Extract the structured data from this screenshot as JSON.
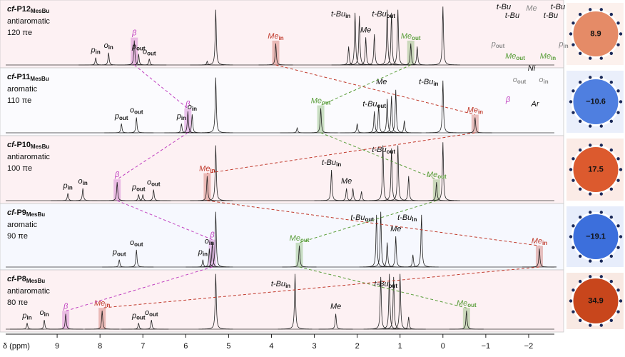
{
  "chart_data": {
    "type": "nmr",
    "xlabel": "δ (ppm)",
    "xlim": [
      10.2,
      -2.6
    ],
    "xticks": [
      9,
      8,
      7,
      6,
      5,
      4,
      3,
      2,
      1,
      0,
      {
        "value": -1,
        "label": "−1"
      },
      {
        "value": -2,
        "label": "−2"
      }
    ],
    "series": [
      {
        "name": {
          "prefix": "cf-",
          "main": "P12",
          "sub": "MesBu"
        },
        "desc": "antiaromatic",
        "electrons": "120 πe",
        "background": "#fdf1f3",
        "nics": {
          "value": 8.9,
          "label": "8.9"
        },
        "nics_color": "#e58b67",
        "peaks": [
          {
            "ppm": 8.1,
            "height": 0.12,
            "label": {
              "main": "p",
              "sub": "in"
            }
          },
          {
            "ppm": 7.8,
            "height": 0.2,
            "label": {
              "main": "o",
              "sub": "in"
            }
          },
          {
            "ppm": 7.2,
            "height": 0.4,
            "label": {
              "main": "β",
              "color": "#c040c0"
            }
          },
          {
            "ppm": 7.1,
            "height": 0.18,
            "label": {
              "main": "p",
              "sub": "out"
            }
          },
          {
            "ppm": 6.85,
            "height": 0.1,
            "label": {
              "main": "o",
              "sub": "out"
            }
          },
          {
            "ppm": 5.5,
            "height": 0.06
          },
          {
            "ppm": 5.3,
            "height": 0.9
          },
          {
            "ppm": 3.9,
            "height": 0.35,
            "label": {
              "main": "Me",
              "sub": "in",
              "color": "#c0392b"
            }
          },
          {
            "ppm": 2.2,
            "height": 0.3
          },
          {
            "ppm": 2.05,
            "height": 0.85,
            "label": {
              "main": "t-Bu",
              "sub": "in"
            }
          },
          {
            "ppm": 1.95,
            "height": 0.8
          },
          {
            "ppm": 1.8,
            "height": 0.45,
            "label": {
              "main": "Me"
            }
          },
          {
            "ppm": 1.6,
            "height": 0.5
          },
          {
            "ppm": 1.3,
            "height": 0.9
          },
          {
            "ppm": 1.2,
            "height": 0.85
          },
          {
            "ppm": 1.05,
            "height": 0.9,
            "label": {
              "main": "t-Bu",
              "sub": "out"
            }
          },
          {
            "ppm": 0.75,
            "height": 0.35,
            "label": {
              "main": "Me",
              "sub": "out",
              "color": "#5a9e3a"
            }
          },
          {
            "ppm": 0.6,
            "height": 0.3
          },
          {
            "ppm": 0,
            "height": 0.95
          }
        ]
      },
      {
        "name": {
          "prefix": "cf-",
          "main": "P11",
          "sub": "MesBu"
        },
        "desc": "aromatic",
        "electrons": "110 πe",
        "background": "#fbfbfe",
        "nics": {
          "value": -10.6,
          "label": "−10.6"
        },
        "nics_color": "#4f7fe0",
        "peaks": [
          {
            "ppm": 7.5,
            "height": 0.15,
            "label": {
              "main": "p",
              "sub": "out"
            }
          },
          {
            "ppm": 7.15,
            "height": 0.25,
            "label": {
              "main": "o",
              "sub": "out"
            }
          },
          {
            "ppm": 6.1,
            "height": 0.15,
            "label": {
              "main": "p",
              "sub": "in"
            }
          },
          {
            "ppm": 5.95,
            "height": 0.35,
            "label": {
              "main": "β",
              "color": "#c040c0"
            }
          },
          {
            "ppm": 5.85,
            "height": 0.3,
            "label": {
              "main": "o",
              "sub": "in"
            }
          },
          {
            "ppm": 5.3,
            "height": 0.9
          },
          {
            "ppm": 3.4,
            "height": 0.08
          },
          {
            "ppm": 2.85,
            "height": 0.4,
            "label": {
              "main": "Me",
              "sub": "out",
              "color": "#5a9e3a"
            }
          },
          {
            "ppm": 2.0,
            "height": 0.15
          },
          {
            "ppm": 1.6,
            "height": 0.35,
            "label": {
              "main": "t-Bu",
              "sub": "out"
            }
          },
          {
            "ppm": 1.5,
            "height": 0.45
          },
          {
            "ppm": 1.3,
            "height": 0.55
          },
          {
            "ppm": 1.2,
            "height": 0.6
          },
          {
            "ppm": 1.1,
            "height": 0.7,
            "label": {
              "main": "Me"
            }
          },
          {
            "ppm": 0.9,
            "height": 0.2
          },
          {
            "ppm": 0,
            "height": 0.85,
            "label": {
              "main": "t-Bu",
              "sub": "in"
            }
          },
          {
            "ppm": -0.75,
            "height": 0.25,
            "label": {
              "main": "Me",
              "sub": "in",
              "color": "#c0392b"
            }
          }
        ]
      },
      {
        "name": {
          "prefix": "cf-",
          "main": "P10",
          "sub": "MesBu"
        },
        "desc": "antiaromatic",
        "electrons": "100 πe",
        "background": "#fdf1f3",
        "nics": {
          "value": 17.5,
          "label": "17.5"
        },
        "nics_color": "#dc5a2e",
        "peaks": [
          {
            "ppm": 8.75,
            "height": 0.12,
            "label": {
              "main": "p",
              "sub": "in"
            }
          },
          {
            "ppm": 8.4,
            "height": 0.2,
            "label": {
              "main": "o",
              "sub": "in"
            }
          },
          {
            "ppm": 7.6,
            "height": 0.3,
            "label": {
              "main": "β",
              "color": "#c040c0"
            }
          },
          {
            "ppm": 7.1,
            "height": 0.1,
            "label": {
              "main": "p",
              "sub": "out"
            }
          },
          {
            "ppm": 7.0,
            "height": 0.1
          },
          {
            "ppm": 6.75,
            "height": 0.18,
            "label": {
              "main": "o",
              "sub": "out"
            }
          },
          {
            "ppm": 5.5,
            "height": 0.4,
            "label": {
              "main": "Me",
              "sub": "in",
              "color": "#c0392b"
            }
          },
          {
            "ppm": 5.3,
            "height": 0.9
          },
          {
            "ppm": 2.6,
            "height": 0.5,
            "label": {
              "main": "t-Bu",
              "sub": "in"
            }
          },
          {
            "ppm": 2.25,
            "height": 0.2,
            "label": {
              "main": "Me"
            }
          },
          {
            "ppm": 2.1,
            "height": 0.2
          },
          {
            "ppm": 1.9,
            "height": 0.15
          },
          {
            "ppm": 1.4,
            "height": 0.9
          },
          {
            "ppm": 1.2,
            "height": 0.85
          },
          {
            "ppm": 1.05,
            "height": 0.9,
            "label": {
              "main": "t-Bu",
              "sub": "out"
            }
          },
          {
            "ppm": 0.8,
            "height": 0.4
          },
          {
            "ppm": 0.15,
            "height": 0.3,
            "label": {
              "main": "Me",
              "sub": "out",
              "color": "#5a9e3a"
            }
          },
          {
            "ppm": 0,
            "height": 0.95
          }
        ]
      },
      {
        "name": {
          "prefix": "cf-",
          "main": "P9",
          "sub": "MesBu"
        },
        "desc": "aromatic",
        "electrons": "90 πe",
        "background": "#f6f8fe",
        "nics": {
          "value": -19.1,
          "label": "−19.1"
        },
        "nics_color": "#3c6fdc",
        "peaks": [
          {
            "ppm": 7.55,
            "height": 0.12,
            "label": {
              "main": "p",
              "sub": "out"
            }
          },
          {
            "ppm": 7.15,
            "height": 0.28,
            "label": {
              "main": "o",
              "sub": "out"
            }
          },
          {
            "ppm": 5.6,
            "height": 0.12,
            "label": {
              "main": "p",
              "sub": "in"
            }
          },
          {
            "ppm": 5.45,
            "height": 0.3,
            "label": {
              "main": "o",
              "sub": "in"
            }
          },
          {
            "ppm": 5.38,
            "height": 0.4,
            "label": {
              "main": "β",
              "color": "#c040c0"
            }
          },
          {
            "ppm": 5.3,
            "height": 0.9
          },
          {
            "ppm": 3.35,
            "height": 0.35,
            "label": {
              "main": "Me",
              "sub": "out",
              "color": "#5a9e3a"
            }
          },
          {
            "ppm": 1.55,
            "height": 0.85,
            "label": {
              "main": "t-Bu",
              "sub": "out"
            }
          },
          {
            "ppm": 1.45,
            "height": 0.9
          },
          {
            "ppm": 1.3,
            "height": 0.4
          },
          {
            "ppm": 1.1,
            "height": 0.5,
            "label": {
              "main": "Me"
            }
          },
          {
            "ppm": 0.7,
            "height": 0.2
          },
          {
            "ppm": 0.5,
            "height": 0.85,
            "label": {
              "main": "t-Bu",
              "sub": "in"
            }
          },
          {
            "ppm": -2.25,
            "height": 0.3,
            "label": {
              "main": "Me",
              "sub": "in",
              "color": "#c0392b"
            }
          }
        ]
      },
      {
        "name": {
          "prefix": "cf-",
          "main": "P8",
          "sub": "MesBu"
        },
        "desc": "antiaromatic",
        "electrons": "80 πe",
        "background": "#fdf1f3",
        "nics": {
          "value": 34.9,
          "label": "34.9"
        },
        "nics_color": "#c8461c",
        "peaks": [
          {
            "ppm": 9.7,
            "height": 0.1,
            "label": {
              "main": "p",
              "sub": "in"
            }
          },
          {
            "ppm": 9.3,
            "height": 0.15,
            "label": {
              "main": "o",
              "sub": "in"
            }
          },
          {
            "ppm": 8.8,
            "height": 0.25,
            "label": {
              "main": "β",
              "color": "#c040c0"
            }
          },
          {
            "ppm": 7.95,
            "height": 0.3,
            "label": {
              "main": "Me",
              "sub": "in",
              "color": "#c0392b"
            }
          },
          {
            "ppm": 7.1,
            "height": 0.1,
            "label": {
              "main": "p",
              "sub": "out"
            }
          },
          {
            "ppm": 6.8,
            "height": 0.15,
            "label": {
              "main": "o",
              "sub": "out"
            }
          },
          {
            "ppm": 5.3,
            "height": 0.9
          },
          {
            "ppm": 3.45,
            "height": 0.9,
            "label": {
              "main": "t-Bu",
              "sub": "in"
            }
          },
          {
            "ppm": 2.5,
            "height": 0.25,
            "label": {
              "main": "Me"
            }
          },
          {
            "ppm": 1.45,
            "height": 0.85
          },
          {
            "ppm": 1.25,
            "height": 0.9
          },
          {
            "ppm": 1.15,
            "height": 0.85
          },
          {
            "ppm": 1.0,
            "height": 0.9,
            "label": {
              "main": "t-Bu",
              "sub": "out"
            }
          },
          {
            "ppm": 0.8,
            "height": 0.2
          },
          {
            "ppm": -0.55,
            "height": 0.3,
            "label": {
              "main": "Me",
              "sub": "out",
              "color": "#5a9e3a"
            }
          }
        ]
      }
    ]
  },
  "structure": {
    "labels": [
      {
        "main": "t-Bu"
      },
      {
        "main": "t-Bu"
      },
      {
        "main": "t-Bu"
      },
      {
        "main": "t-Bu"
      },
      {
        "main": "Me",
        "color": "#888888"
      },
      {
        "main": "p",
        "sub": "out",
        "color": "#888888"
      },
      {
        "main": "p",
        "sub": "in",
        "color": "#888888"
      },
      {
        "main": "Me",
        "sub": "out",
        "color": "#5a9e3a"
      },
      {
        "main": "Me",
        "sub": "in",
        "color": "#5a9e3a"
      },
      {
        "main": "Ni"
      },
      {
        "main": "o",
        "sub": "out",
        "color": "#888888"
      },
      {
        "main": "o",
        "sub": "in",
        "color": "#888888"
      },
      {
        "main": "β",
        "color": "#c040c0"
      },
      {
        "main": "Ar"
      }
    ]
  }
}
